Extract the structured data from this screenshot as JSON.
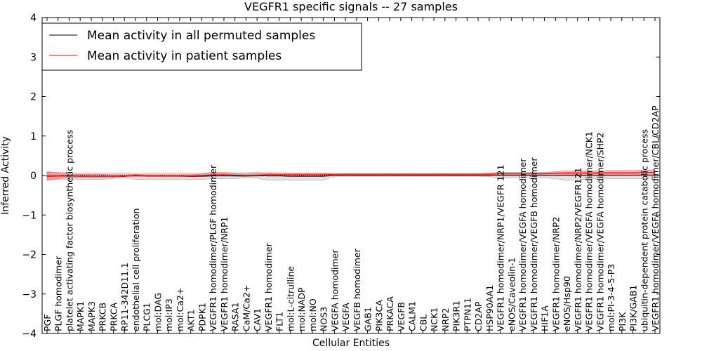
{
  "chart_data": {
    "type": "line",
    "title": "VEGFR1 specific signals -- 27 samples",
    "xlabel": "Cellular Entities",
    "ylabel": "Inferred Activity",
    "ylim": [
      -4,
      4
    ],
    "yticks": [
      "−4",
      "−3",
      "−2",
      "−1",
      "0",
      "1",
      "2",
      "3",
      "4"
    ],
    "ytick_values": [
      -4,
      -3,
      -2,
      -1,
      0,
      1,
      2,
      3,
      4
    ],
    "legend": {
      "placement": "top-left",
      "entries": [
        {
          "label": "Mean activity in all permuted samples",
          "color": "#000000"
        },
        {
          "label": "Mean activity in patient samples",
          "color": "#ff0000"
        }
      ]
    },
    "categories": [
      "PGF",
      "PLGF homodimer",
      "platelet activating factor biosynthetic process",
      "MAPK1",
      "MAPK3",
      "PRKCB",
      "PRKCA",
      "RP11-342D11.1",
      "endothelial cell proliferation",
      "PLCG1",
      "mol:DAG",
      "mol:IP3",
      "mol:Ca2+",
      "AKT1",
      "PDPK1",
      "VEGFR1 homodimer/PLGF homodimer",
      "VEGFR1 homodimer/NRP1",
      "RASA1",
      "CaM/Ca2+",
      "CAV1",
      "VEGFR1 homodimer",
      "FLT1",
      "mol:L-citrulline",
      "mol:NADP",
      "mol:NO",
      "NOS3",
      "VEGFA homodimer",
      "VEGFA",
      "VEGFB homodimer",
      "GAB1",
      "PIK3CA",
      "PRKACA",
      "VEGFB",
      "CALM1",
      "CBL",
      "NCK1",
      "NRP2",
      "PIK3R1",
      "PTPN11",
      "CD2AP",
      "HSP90AA1",
      "VEGFR1 homodimer/NRP1/VEGFR 121",
      "eNOS/Caveolin-1",
      "VEGFR1 homodimer/VEGFA homodimer",
      "VEGFR1 homodimer/VEGFB homodimer",
      "HIF1A",
      "VEGFR1 homodimer/NRP2",
      "eNOS/Hsp90",
      "VEGFR1 homodimer/NRP2/VEGFR121",
      "VEGFR1 homodimer/VEGFA homodimer/NCK1",
      "VEGFR1 homodimer/VEGFA homodimer/SHP2",
      "mol:PI-3-4-5-P3",
      "PI3K",
      "PI3K/GAB1",
      "ubiquitin-dependent protein catabolic process",
      "VEGFR1 homodimer/VEGFA homodimer/CBL/CD2AP"
    ],
    "series": [
      {
        "name": "Mean activity in all permuted samples",
        "color": "#000000",
        "values": [
          -0.02,
          -0.01,
          -0.01,
          -0.02,
          -0.02,
          -0.02,
          -0.02,
          -0.02,
          0.01,
          -0.01,
          -0.01,
          -0.01,
          -0.01,
          -0.02,
          -0.02,
          -0.01,
          -0.01,
          -0.01,
          -0.01,
          0.0,
          -0.01,
          -0.01,
          -0.02,
          -0.02,
          -0.02,
          -0.02,
          0.0,
          0.0,
          0.0,
          0.0,
          0.0,
          0.0,
          0.0,
          0.0,
          0.0,
          0.0,
          0.0,
          0.0,
          0.0,
          0.0,
          0.0,
          0.0,
          0.0,
          0.0,
          0.0,
          0.0,
          0.0,
          0.0,
          0.0,
          0.0,
          0.0,
          0.0,
          0.0,
          0.0,
          0.0,
          0.0
        ],
        "band_low": [
          -0.12,
          -0.1,
          -0.09,
          -0.1,
          -0.1,
          -0.1,
          -0.08,
          -0.05,
          -0.1,
          -0.1,
          -0.1,
          -0.1,
          -0.1,
          -0.1,
          -0.1,
          -0.08,
          -0.08,
          -0.08,
          -0.06,
          -0.07,
          -0.12,
          -0.12,
          -0.12,
          -0.12,
          -0.12,
          -0.12,
          -0.02,
          -0.02,
          -0.02,
          -0.02,
          -0.02,
          -0.02,
          -0.02,
          -0.02,
          -0.02,
          -0.02,
          -0.02,
          -0.02,
          -0.02,
          -0.02,
          -0.03,
          -0.06,
          -0.06,
          -0.06,
          -0.06,
          -0.06,
          -0.08,
          -0.12,
          -0.12,
          -0.08,
          -0.08,
          -0.08,
          -0.08,
          -0.08,
          -0.08,
          -0.08
        ],
        "band_high": [
          0.08,
          0.08,
          0.07,
          0.06,
          0.06,
          0.06,
          0.06,
          0.07,
          0.05,
          0.06,
          0.06,
          0.06,
          0.06,
          0.06,
          0.06,
          0.08,
          0.08,
          0.07,
          0.07,
          0.08,
          0.06,
          0.06,
          0.05,
          0.05,
          0.05,
          0.05,
          0.04,
          0.04,
          0.04,
          0.04,
          0.04,
          0.04,
          0.04,
          0.04,
          0.04,
          0.04,
          0.04,
          0.04,
          0.04,
          0.04,
          0.05,
          0.06,
          0.06,
          0.06,
          0.06,
          0.06,
          0.07,
          0.08,
          0.08,
          0.08,
          0.08,
          0.08,
          0.08,
          0.08,
          0.08,
          0.08
        ]
      },
      {
        "name": "Mean activity in patient samples",
        "color": "#ff0000",
        "values": [
          -0.01,
          -0.01,
          -0.02,
          -0.02,
          -0.02,
          -0.02,
          -0.02,
          -0.01,
          0.0,
          -0.01,
          -0.01,
          -0.01,
          -0.01,
          -0.01,
          0.0,
          0.02,
          0.02,
          0.01,
          0.0,
          0.01,
          0.02,
          0.02,
          0.02,
          0.02,
          0.02,
          0.02,
          0.03,
          0.03,
          0.03,
          0.03,
          0.03,
          0.03,
          0.03,
          0.03,
          0.03,
          0.03,
          0.03,
          0.03,
          0.03,
          0.03,
          0.03,
          0.04,
          0.04,
          0.04,
          0.04,
          0.04,
          0.05,
          0.06,
          0.06,
          0.06,
          0.06,
          0.07,
          0.07,
          0.07,
          0.08,
          0.08
        ],
        "band_low": [
          -0.12,
          -0.08,
          -0.06,
          -0.06,
          -0.06,
          -0.06,
          -0.05,
          -0.03,
          -0.02,
          -0.03,
          -0.03,
          -0.03,
          -0.03,
          -0.03,
          -0.02,
          -0.01,
          -0.01,
          -0.02,
          -0.03,
          -0.02,
          -0.01,
          -0.01,
          -0.01,
          -0.01,
          -0.01,
          -0.01,
          0.01,
          0.01,
          0.01,
          0.01,
          0.01,
          0.01,
          0.01,
          0.01,
          0.01,
          0.01,
          0.01,
          0.01,
          0.01,
          0.01,
          0.01,
          0.0,
          0.0,
          0.0,
          0.0,
          0.0,
          0.0,
          0.01,
          0.01,
          0.01,
          0.01,
          0.02,
          0.02,
          0.02,
          0.02,
          0.03
        ],
        "band_high": [
          0.1,
          0.07,
          0.04,
          0.03,
          0.03,
          0.03,
          0.02,
          0.02,
          0.03,
          0.02,
          0.02,
          0.02,
          0.02,
          0.02,
          0.04,
          0.07,
          0.07,
          0.05,
          0.04,
          0.06,
          0.07,
          0.06,
          0.06,
          0.06,
          0.06,
          0.06,
          0.05,
          0.05,
          0.05,
          0.05,
          0.05,
          0.05,
          0.05,
          0.05,
          0.05,
          0.05,
          0.05,
          0.05,
          0.05,
          0.05,
          0.06,
          0.08,
          0.08,
          0.08,
          0.08,
          0.08,
          0.1,
          0.12,
          0.12,
          0.12,
          0.12,
          0.13,
          0.13,
          0.13,
          0.14,
          0.14
        ]
      }
    ]
  }
}
